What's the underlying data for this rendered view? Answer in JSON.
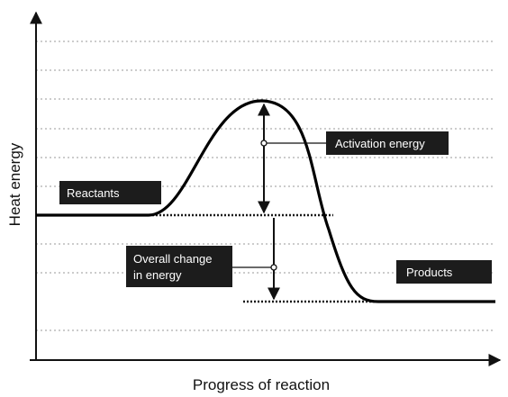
{
  "diagram": {
    "y_axis_title": "Heat energy",
    "x_axis_title": "Progress of reaction",
    "labels": {
      "reactants": "Reactants",
      "products": "Products",
      "activation_energy": "Activation energy",
      "overall_change_line1": "Overall change",
      "overall_change_line2": "in energy"
    },
    "colors": {
      "curve": "#000000",
      "tag_background": "#1c1c1c",
      "tag_text": "#ffffff",
      "grid": "#9a9a9a"
    }
  }
}
